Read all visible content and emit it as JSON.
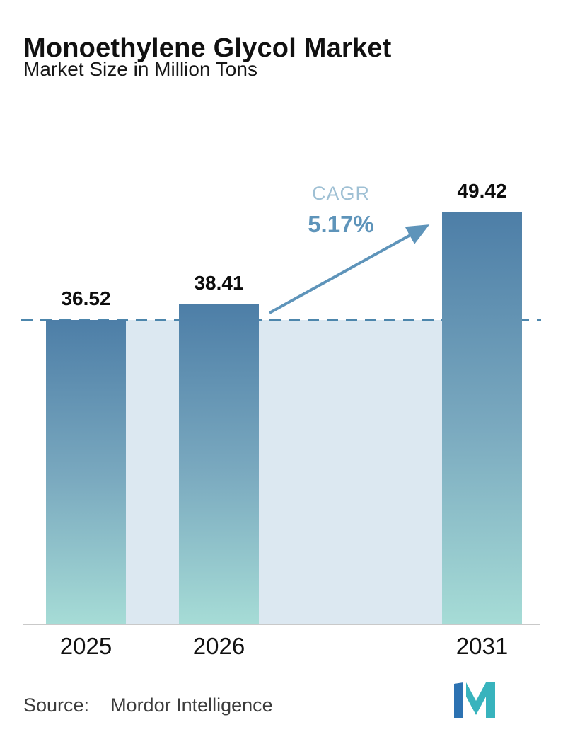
{
  "chart_data": {
    "type": "bar",
    "title": "Monoethylene Glycol Market",
    "subtitle": "Market Size in Million Tons",
    "unit": "Million Tons",
    "categories": [
      "2025",
      "2026",
      "2031"
    ],
    "values": [
      36.52,
      38.41,
      49.42
    ],
    "value_labels": [
      "36.52",
      "38.41",
      "49.42"
    ],
    "annotation": {
      "label": "CAGR",
      "value": "5.17%"
    },
    "baseline_value": 36.52,
    "baseline_style": "dashed",
    "y_axis_visible": false,
    "grid": false,
    "legend": "none",
    "ylim": [
      0,
      55
    ],
    "colors": {
      "bar_gradient_top": "#4d7ea7",
      "bar_gradient_mid": "#7aa9bf",
      "bar_gradient_bottom": "#a6dcd6",
      "area_fill": "#dce8f1",
      "dashed_line": "#4d86ac",
      "arrow": "#5e94ba",
      "cagr_label": "#9fc0d4",
      "cagr_value": "#5e94ba",
      "axis_line": "#c9c9c9"
    }
  },
  "footer": {
    "source_label": "Source:",
    "source_name": "Mordor Intelligence",
    "logo_colors": {
      "blue": "#2c72b2",
      "teal": "#38b3bd"
    }
  }
}
